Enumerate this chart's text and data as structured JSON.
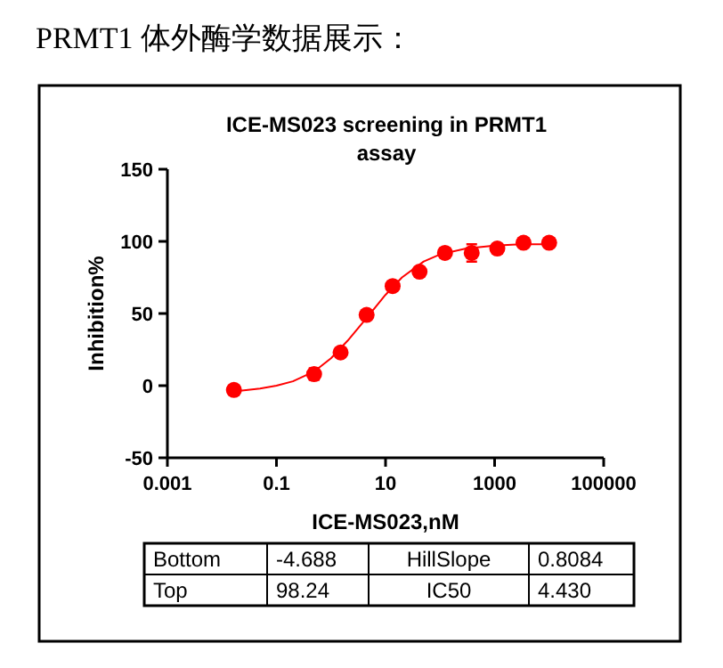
{
  "chart_data": {
    "type": "scatter",
    "title": "PRMT1 体外酶学数据展示：",
    "subtitle": "ICE-MS023 screening in PRMT1 assay",
    "xlabel": "ICE-MS023,nM",
    "ylabel": "Inhibition%",
    "log": "x",
    "grid": false,
    "marker": "circle",
    "xlim": [
      0.001,
      100000
    ],
    "xticks": [
      0.001,
      0.1,
      10,
      1000,
      100000
    ],
    "ylim": [
      -50,
      150
    ],
    "yticks": [
      -50,
      0,
      50,
      100,
      150
    ],
    "series": [
      {
        "color": "#ff0000",
        "x": [
          0.0166,
          0.49,
          1.5,
          4.5,
          13.5,
          42,
          123,
          380,
          1120,
          3390,
          10000
        ],
        "values": [
          -3,
          8,
          23,
          49,
          69,
          79,
          92,
          92,
          95,
          99,
          99
        ],
        "errors": [
          null,
          4,
          null,
          null,
          null,
          null,
          null,
          6,
          null,
          null,
          null
        ]
      },
      {
        "type": "line",
        "color": "#ff0000",
        "marker": "none",
        "x": [
          0.0166,
          0.05,
          0.1,
          0.2,
          0.5,
          1,
          2,
          5,
          10,
          20,
          50,
          100,
          300,
          1000,
          3000,
          10000
        ],
        "values": [
          -4,
          -2,
          0,
          3,
          10,
          19,
          31,
          49,
          63,
          75,
          86,
          91,
          95,
          97,
          98,
          98
        ]
      }
    ],
    "annotations": [
      "Bottom",
      "-4.688",
      "HillSlope",
      "0.8084",
      "Top",
      "98.24",
      "IC50",
      "4.430"
    ]
  }
}
